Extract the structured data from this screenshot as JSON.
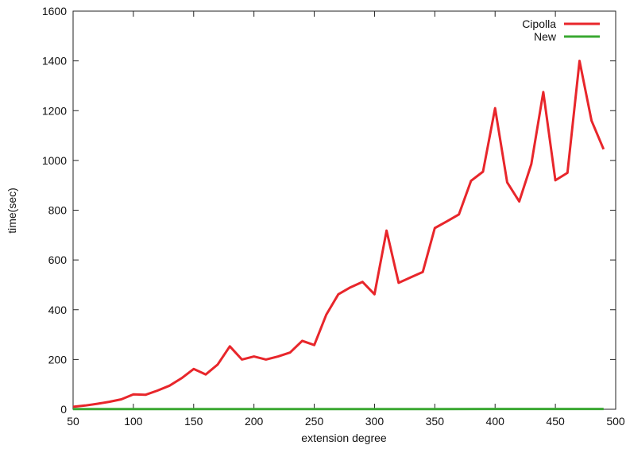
{
  "chart_data": {
    "type": "line",
    "title": "",
    "xlabel": "extension degree",
    "ylabel": "time(sec)",
    "xlim": [
      50,
      500
    ],
    "ylim": [
      0,
      1600
    ],
    "xticks": [
      50,
      100,
      150,
      200,
      250,
      300,
      350,
      400,
      450,
      500
    ],
    "yticks": [
      0,
      200,
      400,
      600,
      800,
      1000,
      1200,
      1400,
      1600
    ],
    "grid": false,
    "legend_position": "top-right",
    "series": [
      {
        "name": "Cipolla",
        "color": "#e8262b",
        "x": [
          50,
          60,
          70,
          80,
          90,
          100,
          110,
          120,
          130,
          140,
          150,
          160,
          170,
          180,
          190,
          200,
          210,
          220,
          230,
          240,
          250,
          260,
          270,
          280,
          290,
          300,
          310,
          320,
          330,
          340,
          350,
          360,
          370,
          380,
          390,
          400,
          410,
          420,
          430,
          440,
          450,
          460,
          470,
          480,
          490
        ],
        "y": [
          10,
          15,
          22,
          30,
          40,
          60,
          58,
          75,
          95,
          125,
          162,
          140,
          180,
          253,
          200,
          212,
          200,
          212,
          228,
          275,
          258,
          380,
          462,
          490,
          512,
          462,
          718,
          508,
          530,
          552,
          728,
          755,
          783,
          918,
          955,
          1210,
          912,
          835,
          985,
          1275,
          920,
          950,
          1400,
          1160,
          1045
        ]
      },
      {
        "name": "New",
        "color": "#3aa832",
        "x": [
          50,
          100,
          150,
          200,
          250,
          300,
          350,
          400,
          450,
          490
        ],
        "y": [
          0.5,
          0.6,
          0.7,
          0.8,
          0.9,
          1.0,
          1.1,
          1.2,
          1.3,
          1.4
        ]
      }
    ]
  }
}
